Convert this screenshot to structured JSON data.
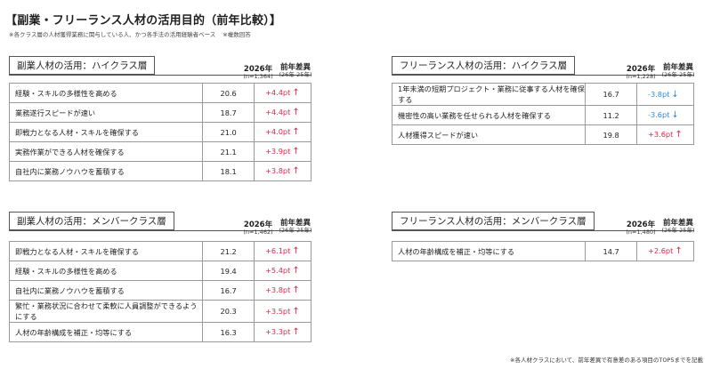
{
  "title": "【副業・フリーランス人材の活用目的（前年比較）】",
  "note1": "※各クラス層の人材獲得業務に関与している人、かつ各手法の活用経験者ベース",
  "note2": "※複数回答",
  "footnote": "※各人材クラスにおいて、前年差異で有意差のある項目のTOP5までを記載",
  "panels": [
    {
      "title": "副業人材の活用：ハイクラス層",
      "year": "2026年",
      "n": "(n=1,364)",
      "diff_head": "前年差異",
      "diff_sub": "(26年-25年)",
      "rows": [
        {
          "label": "経験・スキルの多様性を高める",
          "value": "20.6",
          "diff": "+4.4pt",
          "arrow": "↑",
          "dir": "up"
        },
        {
          "label": "業務遂行スピードが速い",
          "value": "18.7",
          "diff": "+4.4pt",
          "arrow": "↑",
          "dir": "up"
        },
        {
          "label": "即戦力となる人材・スキルを確保する",
          "value": "21.0",
          "diff": "+4.0pt",
          "arrow": "↑",
          "dir": "up"
        },
        {
          "label": "実務作業ができる人材を確保する",
          "value": "21.1",
          "diff": "+3.9pt",
          "arrow": "↑",
          "dir": "up"
        },
        {
          "label": "自社内に業務ノウハウを蓄積する",
          "value": "18.1",
          "diff": "+3.8pt",
          "arrow": "↑",
          "dir": "up"
        }
      ]
    },
    {
      "title": "フリーランス人材の活用：ハイクラス層",
      "year": "2026年",
      "n": "(n=1,228)",
      "diff_head": "前年差異",
      "diff_sub": "(26年-25年)",
      "rows": [
        {
          "label": "1年未満の短期プロジェクト・業務に従事する人材を確保する",
          "value": "16.7",
          "diff": "-3.8pt",
          "arrow": "↓",
          "dir": "down"
        },
        {
          "label": "機密性の高い業務を任せられる人材を確保する",
          "value": "11.2",
          "diff": "-3.6pt",
          "arrow": "↓",
          "dir": "down"
        },
        {
          "label": "人材獲得スピードが速い",
          "value": "19.8",
          "diff": "+3.6pt",
          "arrow": "↑",
          "dir": "up"
        }
      ]
    },
    {
      "title": "副業人材の活用：メンバークラス層",
      "year": "2026年",
      "n": "(n=1,462)",
      "diff_head": "前年差異",
      "diff_sub": "(26年-25年)",
      "rows": [
        {
          "label": "即戦力となる人材・スキルを確保する",
          "value": "21.2",
          "diff": "+6.1pt",
          "arrow": "↑",
          "dir": "up"
        },
        {
          "label": "経験・スキルの多様性を高める",
          "value": "19.4",
          "diff": "+5.4pt",
          "arrow": "↑",
          "dir": "up"
        },
        {
          "label": "自社内に業務ノウハウを蓄積する",
          "value": "16.7",
          "diff": "+3.8pt",
          "arrow": "↑",
          "dir": "up"
        },
        {
          "label": "繁忙・業務状況に合わせて柔軟に人員調整ができるようにする",
          "value": "20.3",
          "diff": "+3.5pt",
          "arrow": "↑",
          "dir": "up"
        },
        {
          "label": "人材の年齢構成を補正・均等にする",
          "value": "16.3",
          "diff": "+3.3pt",
          "arrow": "↑",
          "dir": "up"
        }
      ]
    },
    {
      "title": "フリーランス人材の活用：メンバークラス層",
      "year": "2026年",
      "n": "(n=1,480)",
      "diff_head": "前年差異",
      "diff_sub": "(26年-25年)",
      "rows": [
        {
          "label": "人材の年齢構成を補正・均等にする",
          "value": "14.7",
          "diff": "+2.6pt",
          "arrow": "↑",
          "dir": "up"
        }
      ]
    }
  ]
}
